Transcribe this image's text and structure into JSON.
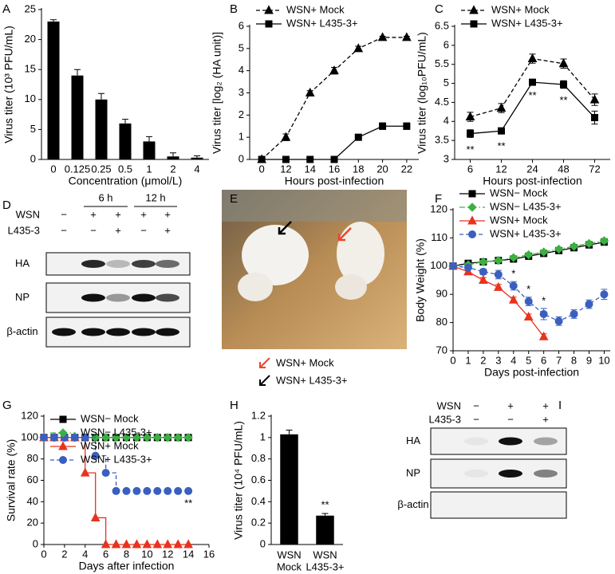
{
  "chart_data": [
    {
      "type": "bar",
      "label": "A",
      "categories": [
        "0",
        "0.125",
        "0.25",
        "0.5",
        "1",
        "2",
        "4"
      ],
      "values": [
        23,
        14,
        10,
        6,
        3,
        0.5,
        0.3
      ],
      "errors": [
        0.3,
        1,
        1,
        0.7,
        0.8,
        0.6,
        0.3
      ],
      "color": "#000000",
      "ylim": [
        0,
        25
      ],
      "yticks": [
        0,
        5,
        10,
        15,
        20,
        25
      ],
      "ylabel": "Virus titer (10³ PFU/mL)",
      "xlabel": "Concentration (μmol/L)"
    },
    {
      "type": "line",
      "label": "B",
      "categories": [
        "0",
        "12",
        "14",
        "16",
        "18",
        "20",
        "22"
      ],
      "series": [
        {
          "name": "WSN+ Mock",
          "color": "#000000",
          "dash": "dashed",
          "marker": "triangle",
          "values": [
            0,
            1,
            3,
            4,
            5,
            5.5,
            5.5
          ],
          "errors": [
            0,
            0.15,
            0.1,
            0.15,
            0.1,
            0.05,
            0.05
          ]
        },
        {
          "name": "WSN+ L435-3+",
          "color": "#000000",
          "dash": "solid",
          "marker": "square",
          "values": [
            0,
            0,
            0,
            0,
            1,
            1.5,
            1.5
          ],
          "errors": [
            0,
            0,
            0,
            0,
            0.05,
            0.15,
            0.15
          ]
        }
      ],
      "ylim": [
        0,
        6
      ],
      "yticks": [
        0,
        1,
        2,
        3,
        4,
        5,
        6
      ],
      "legend": "top",
      "ylabel": "Virus titer [log₂ (HA unit)]",
      "xlabel": "Hours post-infection"
    },
    {
      "type": "line",
      "label": "C",
      "categories": [
        "6",
        "12",
        "24",
        "48",
        "72"
      ],
      "series": [
        {
          "name": "WSN+ Mock",
          "color": "#000000",
          "dash": "dashed",
          "marker": "triangle",
          "values": [
            4.12,
            4.35,
            5.65,
            5.52,
            4.57
          ],
          "errors": [
            0.12,
            0.12,
            0.12,
            0.12,
            0.15
          ]
        },
        {
          "name": "WSN+ L435-3+",
          "color": "#000000",
          "dash": "solid",
          "marker": "square",
          "values": [
            3.68,
            3.75,
            5.03,
            4.97,
            4.1
          ],
          "errors": [
            0.1,
            0.08,
            0.03,
            0.1,
            0.17
          ],
          "significance": [
            "**",
            "**",
            "**",
            "**",
            null
          ],
          "significance_position": "below"
        }
      ],
      "ylim": [
        3,
        6.5
      ],
      "yticks": [
        3,
        3.5,
        4,
        4.5,
        5,
        5.5,
        6,
        6.5
      ],
      "legend": "top",
      "ylabel": "Virus titer (log₁₀PFU/mL)",
      "xlabel": "Hours post-infection"
    },
    {
      "type": "line",
      "label": "F",
      "x": [
        0,
        1,
        2,
        3,
        4,
        5,
        6,
        7,
        8,
        9,
        10
      ],
      "series": [
        {
          "name": "WSN− Mock",
          "color": "#000000",
          "dash": "solid",
          "marker": "square",
          "values": [
            100,
            101,
            101.5,
            102,
            102.5,
            103.5,
            104.5,
            105.5,
            106.5,
            107.5,
            108.5
          ],
          "errors": [
            0,
            0.5,
            0.5,
            0.5,
            0.5,
            0.5,
            0.5,
            0.5,
            0.5,
            0.8,
            0.8
          ]
        },
        {
          "name": "WSN− L435-3+",
          "color": "#3cb043",
          "dash": "dashdot",
          "marker": "diamond",
          "values": [
            100,
            100.5,
            101.5,
            102,
            103,
            104,
            105,
            106,
            107,
            108,
            109
          ],
          "errors": [
            0,
            0.5,
            0.5,
            0.5,
            0.5,
            0.5,
            0.5,
            0.5,
            0.5,
            0.8,
            0.8
          ]
        },
        {
          "name": "WSN+ Mock",
          "color": "#e8331f",
          "dash": "solid",
          "marker": "triangle",
          "values": [
            100,
            98,
            95,
            92.5,
            88,
            82,
            75,
            null,
            null,
            null,
            null
          ],
          "errors": [
            0,
            1,
            1,
            1,
            1,
            1,
            1,
            null,
            null,
            null,
            null
          ]
        },
        {
          "name": "WSN+ L435-3+",
          "color": "#3a5fbf",
          "dash": "dashed",
          "marker": "circle",
          "values": [
            100,
            99.5,
            98,
            97,
            93,
            87.5,
            83,
            80.5,
            83,
            86.5,
            90
          ],
          "errors": [
            0,
            0.5,
            1,
            1.5,
            1.5,
            1.5,
            2,
            1.5,
            1.5,
            1.5,
            1.8
          ],
          "significance": [
            null,
            null,
            null,
            null,
            "*",
            "*",
            "*",
            null,
            null,
            null,
            null
          ],
          "significance_position": "above"
        }
      ],
      "xlim": [
        0,
        10.4
      ],
      "xticks": [
        0,
        1,
        2,
        3,
        4,
        5,
        6,
        7,
        8,
        9,
        10
      ],
      "ylim": [
        70,
        120
      ],
      "yticks": [
        70,
        80,
        90,
        100,
        110,
        120
      ],
      "legend": "top",
      "ylabel": "Body Weight (%)",
      "xlabel": "Days post-infection"
    },
    {
      "type": "line",
      "label": "G",
      "step": true,
      "x": [
        0,
        1,
        2,
        3,
        4,
        5,
        6,
        7,
        8,
        9,
        10,
        11,
        12,
        13,
        14
      ],
      "series": [
        {
          "name": "WSN− Mock",
          "color": "#000000",
          "dash": "solid",
          "marker": "square",
          "values": [
            100,
            100,
            100,
            100,
            100,
            100,
            100,
            100,
            100,
            100,
            100,
            100,
            100,
            100,
            100
          ]
        },
        {
          "name": "WSN− L435-3+",
          "color": "#3cb043",
          "dash": "dashdot",
          "marker": "diamond",
          "values": [
            100,
            100,
            100,
            100,
            100,
            100,
            100,
            100,
            100,
            100,
            100,
            100,
            100,
            100,
            100
          ]
        },
        {
          "name": "WSN+ Mock",
          "color": "#e8331f",
          "dash": "solid",
          "marker": "triangle",
          "values": [
            100,
            100,
            100,
            100,
            67,
            25,
            0,
            0,
            0,
            0,
            0,
            0,
            0,
            0,
            0
          ]
        },
        {
          "name": "WSN+ L435-3+",
          "color": "#3a5fbf",
          "dash": "dashed",
          "marker": "circle",
          "values": [
            100,
            100,
            100,
            100,
            100,
            83,
            67,
            50,
            50,
            50,
            50,
            50,
            50,
            50,
            50
          ],
          "significance": [
            null,
            null,
            null,
            null,
            null,
            null,
            null,
            null,
            null,
            null,
            null,
            null,
            null,
            null,
            "**"
          ],
          "significance_position": "below"
        }
      ],
      "xlim": [
        0,
        16
      ],
      "xticks": [
        0,
        2,
        4,
        6,
        8,
        10,
        12,
        14,
        16
      ],
      "ylim": [
        0,
        120
      ],
      "yticks": [
        0,
        20,
        40,
        60,
        80,
        100,
        120
      ],
      "legend": "upper-left",
      "ylabel": "Survival rate (%)",
      "xlabel": "Days after infection"
    },
    {
      "type": "bar",
      "label": "H",
      "categories": [
        [
          "WSN",
          "Mock"
        ],
        [
          "WSN",
          "L435-3+"
        ]
      ],
      "values": [
        1.03,
        0.27
      ],
      "errors": [
        0.04,
        0.02
      ],
      "significance": [
        null,
        "**"
      ],
      "color": "#000000",
      "ylim": [
        0,
        1.2
      ],
      "yticks": [
        0,
        0.2,
        0.4,
        0.6,
        0.8,
        1,
        1.2
      ],
      "ylabel": "Virus titer (10⁴ PFU/mL)"
    }
  ],
  "blots": [
    {
      "label": "D",
      "groups": [
        "6 h",
        "12 h"
      ],
      "conditions": [
        {
          "name": "WSN",
          "signs": [
            "−",
            "+",
            "+",
            "+",
            "+"
          ]
        },
        {
          "name": "L435-3",
          "signs": [
            "−",
            "−",
            "+",
            "−",
            "+"
          ]
        }
      ],
      "rows": [
        "HA",
        "NP",
        "β-actin"
      ]
    },
    {
      "label": "I",
      "conditions": [
        {
          "name": "WSN",
          "signs": [
            "−",
            "+",
            "+"
          ]
        },
        {
          "name": "L435-3",
          "signs": [
            "−",
            "−",
            "+"
          ]
        }
      ],
      "rows": [
        "HA",
        "NP",
        "β-actin"
      ]
    }
  ],
  "photo": {
    "label": "E",
    "legend": [
      {
        "text": "WSN+ Mock",
        "arrow_color": "#e8472c"
      },
      {
        "text": "WSN+ L435-3+",
        "arrow_color": "#000000"
      }
    ]
  }
}
